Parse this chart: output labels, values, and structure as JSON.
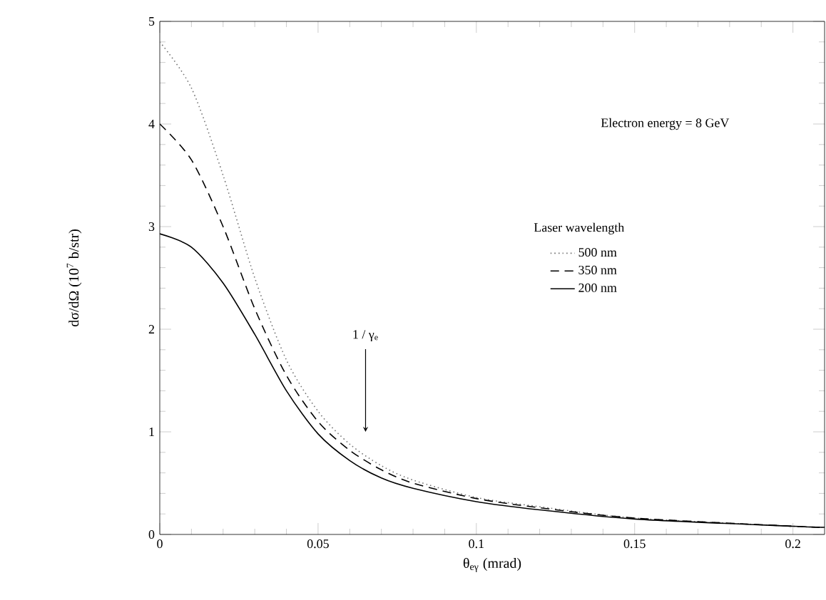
{
  "chart_data": {
    "type": "line",
    "xlabel": "θ$_{eγ}$  (mrad)",
    "ylabel": "dσ/dΩ (10$^{7}$ b/str)",
    "legend_title": "Laser wavelength",
    "legend": "right",
    "grid": false,
    "marker": "none",
    "xlim": [
      0,
      0.21
    ],
    "ylim": [
      0,
      5
    ],
    "xticks": [
      0,
      0.05,
      0.1,
      0.15,
      0.2
    ],
    "yticks": [
      0,
      1,
      2,
      3,
      4,
      5
    ],
    "x": [
      0,
      0.01,
      0.02,
      0.03,
      0.04,
      0.05,
      0.06,
      0.07,
      0.08,
      0.1,
      0.12,
      0.15,
      0.2,
      0.21
    ],
    "series": [
      {
        "name": "500 nm",
        "color": "#777777",
        "line_style": "dotted",
        "values": [
          4.8,
          4.35,
          3.5,
          2.5,
          1.7,
          1.2,
          0.88,
          0.67,
          0.53,
          0.36,
          0.27,
          0.16,
          0.08,
          0.07
        ]
      },
      {
        "name": "350 nm",
        "color": "#000000",
        "line_style": "dashed",
        "values": [
          4.0,
          3.65,
          3.0,
          2.2,
          1.55,
          1.1,
          0.82,
          0.63,
          0.5,
          0.35,
          0.26,
          0.16,
          0.08,
          0.07
        ]
      },
      {
        "name": "200 nm",
        "color": "#000000",
        "line_style": "solid",
        "values": [
          2.93,
          2.8,
          2.45,
          1.95,
          1.4,
          0.98,
          0.72,
          0.55,
          0.45,
          0.32,
          0.24,
          0.15,
          0.08,
          0.07
        ]
      }
    ],
    "annotations": [
      "Electron energy = 8 GeV",
      {
        "text": "1 / γ$_{e}$",
        "x": 0.065,
        "y": 1.0
      }
    ]
  }
}
